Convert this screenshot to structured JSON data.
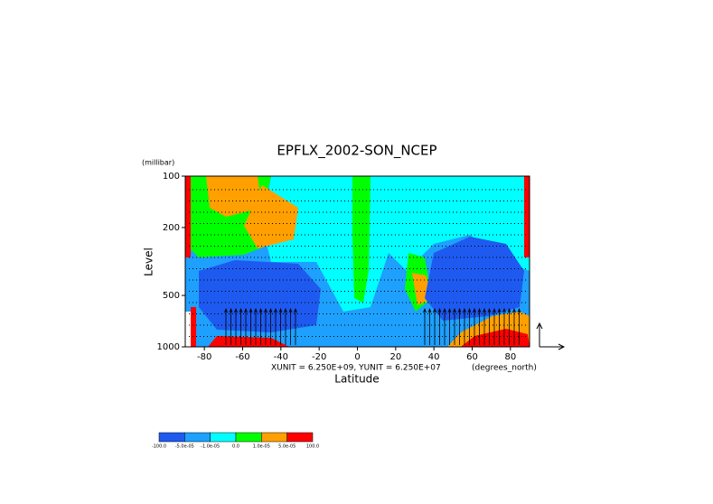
{
  "chart_data": {
    "type": "contour",
    "title": "EPFLX_2002-SON_NCEP",
    "x_label": "Latitude",
    "x_unit": "(degrees_north)",
    "y_label": "Level",
    "y_unit": "(millibar)",
    "annotation": "XUNIT = 6.250E+09, YUNIT = 6.250E+07",
    "xlim": [
      -90,
      90
    ],
    "xticks": [
      -80,
      -60,
      -40,
      -20,
      0,
      20,
      40,
      60,
      80
    ],
    "ylim": [
      100,
      1000
    ],
    "yticks": [
      100,
      200,
      500,
      1000
    ],
    "y_log_scale": true,
    "y_reversed": true,
    "colorbar": {
      "colors": [
        "#1e5af0",
        "#1ea0ff",
        "#00ffff",
        "#00ff00",
        "#ffa000",
        "#ff0000"
      ],
      "labels": [
        "-100.0",
        "-5.0e-05",
        "-1.0e-05",
        "0.0",
        "1.0e-05",
        "5.0e-05",
        "100.0"
      ]
    }
  }
}
